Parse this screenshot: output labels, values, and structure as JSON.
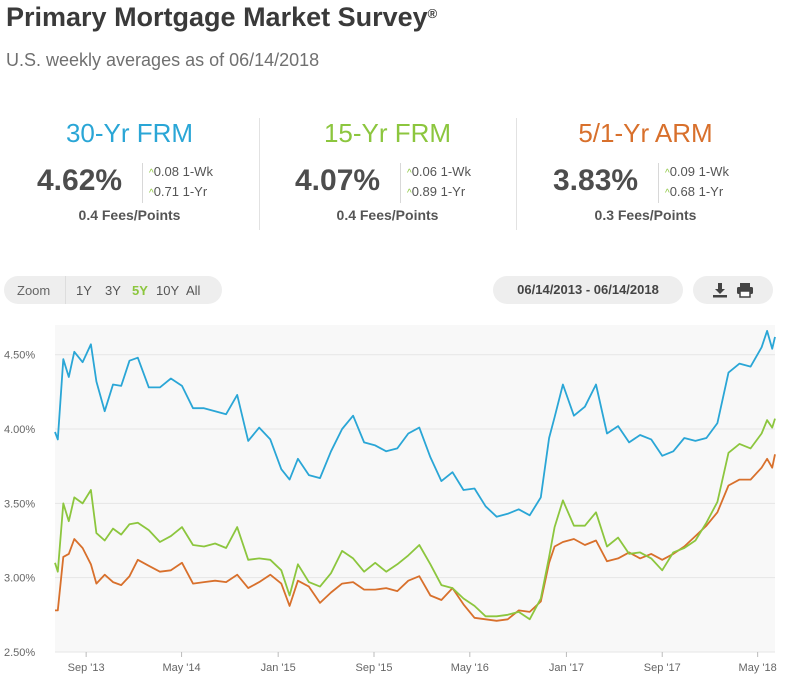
{
  "header": {
    "title": "Primary Mortgage Market Survey",
    "reg_mark": "®",
    "subtitle": "U.S. weekly averages as of 06/14/2018"
  },
  "stats": [
    {
      "name": "30-Yr FRM",
      "rate": "4.62%",
      "wk": "0.08 1-Wk",
      "yr": "0.71 1-Yr",
      "fees": "0.4 Fees/Points",
      "color": "#2aa6d6"
    },
    {
      "name": "15-Yr FRM",
      "rate": "4.07%",
      "wk": "0.06 1-Wk",
      "yr": "0.89 1-Yr",
      "fees": "0.4 Fees/Points",
      "color": "#8cc63e"
    },
    {
      "name": "5/1-Yr ARM",
      "rate": "3.83%",
      "wk": "0.09 1-Wk",
      "yr": "0.68 1-Yr",
      "fees": "0.3 Fees/Points",
      "color": "#d8702c"
    }
  ],
  "change_arrow": "^",
  "zoom": {
    "label": "Zoom",
    "options": [
      "1Y",
      "3Y",
      "5Y",
      "10Y",
      "All"
    ],
    "active": "5Y"
  },
  "date_range": "06/14/2013 - 06/14/2018",
  "icons": {
    "download": "download-icon",
    "print": "print-icon"
  },
  "chart_data": {
    "type": "line",
    "xlim": [
      "2013-06-14",
      "2018-06-14"
    ],
    "ylim": [
      2.5,
      4.7
    ],
    "yticks": [
      2.5,
      3.0,
      3.5,
      4.0,
      4.5
    ],
    "ytick_labels": [
      "2.50%",
      "3.00%",
      "3.50%",
      "4.00%",
      "4.50%"
    ],
    "xticks": [
      "2013-09-01",
      "2014-05-01",
      "2015-01-01",
      "2015-09-01",
      "2016-05-01",
      "2017-01-01",
      "2017-09-01",
      "2018-05-01"
    ],
    "xtick_labels": [
      "Sep '13",
      "May '14",
      "Jan '15",
      "Sep '15",
      "May '16",
      "Jan '17",
      "Sep '17",
      "May '18"
    ],
    "grid": "horizontal",
    "series": [
      {
        "color": "#2aa6d6",
        "x": [
          "2013-06-14",
          "2013-06-21",
          "2013-07-05",
          "2013-07-19",
          "2013-08-02",
          "2013-08-23",
          "2013-09-13",
          "2013-09-27",
          "2013-10-18",
          "2013-11-08",
          "2013-11-29",
          "2013-12-20",
          "2014-01-10",
          "2014-02-07",
          "2014-03-07",
          "2014-04-04",
          "2014-05-02",
          "2014-05-30",
          "2014-06-27",
          "2014-07-25",
          "2014-08-22",
          "2014-09-19",
          "2014-10-17",
          "2014-11-14",
          "2014-12-12",
          "2015-01-09",
          "2015-01-30",
          "2015-02-20",
          "2015-03-20",
          "2015-04-17",
          "2015-05-15",
          "2015-06-12",
          "2015-07-10",
          "2015-08-07",
          "2015-09-04",
          "2015-10-02",
          "2015-10-30",
          "2015-11-27",
          "2015-12-25",
          "2016-01-22",
          "2016-02-19",
          "2016-03-18",
          "2016-04-15",
          "2016-05-13",
          "2016-06-10",
          "2016-07-08",
          "2016-08-05",
          "2016-09-02",
          "2016-09-30",
          "2016-10-28",
          "2016-11-18",
          "2016-12-02",
          "2016-12-23",
          "2017-01-20",
          "2017-02-17",
          "2017-03-17",
          "2017-04-14",
          "2017-05-12",
          "2017-06-09",
          "2017-07-07",
          "2017-08-04",
          "2017-09-01",
          "2017-09-29",
          "2017-10-27",
          "2017-11-24",
          "2017-12-22",
          "2018-01-19",
          "2018-02-16",
          "2018-03-16",
          "2018-04-13",
          "2018-05-11",
          "2018-05-25",
          "2018-06-07",
          "2018-06-14"
        ],
        "y": [
          3.98,
          3.93,
          4.47,
          4.35,
          4.52,
          4.45,
          4.57,
          4.32,
          4.12,
          4.3,
          4.29,
          4.46,
          4.48,
          4.28,
          4.28,
          4.34,
          4.29,
          4.14,
          4.14,
          4.12,
          4.1,
          4.23,
          3.92,
          4.01,
          3.93,
          3.73,
          3.66,
          3.8,
          3.69,
          3.67,
          3.85,
          4.0,
          4.09,
          3.91,
          3.89,
          3.85,
          3.87,
          3.97,
          4.01,
          3.81,
          3.65,
          3.71,
          3.59,
          3.6,
          3.48,
          3.41,
          3.43,
          3.46,
          3.42,
          3.54,
          3.94,
          4.08,
          4.3,
          4.09,
          4.15,
          4.3,
          3.97,
          4.02,
          3.91,
          3.96,
          3.93,
          3.82,
          3.85,
          3.94,
          3.92,
          3.94,
          4.04,
          4.38,
          4.44,
          4.42,
          4.55,
          4.66,
          4.54,
          4.62
        ]
      },
      {
        "color": "#8cc63e",
        "x": [
          "2013-06-14",
          "2013-06-21",
          "2013-07-05",
          "2013-07-19",
          "2013-08-02",
          "2013-08-23",
          "2013-09-13",
          "2013-09-27",
          "2013-10-18",
          "2013-11-08",
          "2013-11-29",
          "2013-12-20",
          "2014-01-10",
          "2014-02-07",
          "2014-03-07",
          "2014-04-04",
          "2014-05-02",
          "2014-05-30",
          "2014-06-27",
          "2014-07-25",
          "2014-08-22",
          "2014-09-19",
          "2014-10-17",
          "2014-11-14",
          "2014-12-12",
          "2015-01-09",
          "2015-01-30",
          "2015-02-20",
          "2015-03-20",
          "2015-04-17",
          "2015-05-15",
          "2015-06-12",
          "2015-07-10",
          "2015-08-07",
          "2015-09-04",
          "2015-10-02",
          "2015-10-30",
          "2015-11-27",
          "2015-12-25",
          "2016-01-22",
          "2016-02-19",
          "2016-03-18",
          "2016-04-15",
          "2016-05-13",
          "2016-06-10",
          "2016-07-08",
          "2016-08-05",
          "2016-09-02",
          "2016-09-30",
          "2016-10-28",
          "2016-11-18",
          "2016-12-02",
          "2016-12-23",
          "2017-01-20",
          "2017-02-17",
          "2017-03-17",
          "2017-04-14",
          "2017-05-12",
          "2017-06-09",
          "2017-07-07",
          "2017-08-04",
          "2017-09-01",
          "2017-09-29",
          "2017-10-27",
          "2017-11-24",
          "2017-12-22",
          "2018-01-19",
          "2018-02-16",
          "2018-03-16",
          "2018-04-13",
          "2018-05-11",
          "2018-05-25",
          "2018-06-07",
          "2018-06-14"
        ],
        "y": [
          3.1,
          3.04,
          3.5,
          3.38,
          3.54,
          3.5,
          3.59,
          3.3,
          3.25,
          3.33,
          3.29,
          3.36,
          3.37,
          3.32,
          3.24,
          3.28,
          3.34,
          3.22,
          3.21,
          3.23,
          3.2,
          3.34,
          3.12,
          3.13,
          3.12,
          3.05,
          2.88,
          3.09,
          2.97,
          2.94,
          3.03,
          3.18,
          3.13,
          3.04,
          3.1,
          3.04,
          3.09,
          3.15,
          3.22,
          3.09,
          2.95,
          2.93,
          2.86,
          2.81,
          2.74,
          2.74,
          2.75,
          2.77,
          2.72,
          2.86,
          3.14,
          3.34,
          3.52,
          3.35,
          3.35,
          3.44,
          3.21,
          3.27,
          3.16,
          3.17,
          3.13,
          3.05,
          3.17,
          3.2,
          3.25,
          3.37,
          3.51,
          3.84,
          3.9,
          3.87,
          3.97,
          4.06,
          4.01,
          4.07
        ]
      },
      {
        "color": "#d8702c",
        "x": [
          "2013-06-14",
          "2013-06-21",
          "2013-07-05",
          "2013-07-19",
          "2013-08-02",
          "2013-08-23",
          "2013-09-13",
          "2013-09-27",
          "2013-10-18",
          "2013-11-08",
          "2013-11-29",
          "2013-12-20",
          "2014-01-10",
          "2014-02-07",
          "2014-03-07",
          "2014-04-04",
          "2014-05-02",
          "2014-05-30",
          "2014-06-27",
          "2014-07-25",
          "2014-08-22",
          "2014-09-19",
          "2014-10-17",
          "2014-11-14",
          "2014-12-12",
          "2015-01-09",
          "2015-01-30",
          "2015-02-20",
          "2015-03-20",
          "2015-04-17",
          "2015-05-15",
          "2015-06-12",
          "2015-07-10",
          "2015-08-07",
          "2015-09-04",
          "2015-10-02",
          "2015-10-30",
          "2015-11-27",
          "2015-12-25",
          "2016-01-22",
          "2016-02-19",
          "2016-03-18",
          "2016-04-15",
          "2016-05-13",
          "2016-06-10",
          "2016-07-08",
          "2016-08-05",
          "2016-09-02",
          "2016-09-30",
          "2016-10-28",
          "2016-11-18",
          "2016-12-02",
          "2016-12-23",
          "2017-01-20",
          "2017-02-17",
          "2017-03-17",
          "2017-04-14",
          "2017-05-12",
          "2017-06-09",
          "2017-07-07",
          "2017-08-04",
          "2017-09-01",
          "2017-09-29",
          "2017-10-27",
          "2017-11-24",
          "2017-12-22",
          "2018-01-19",
          "2018-02-16",
          "2018-03-16",
          "2018-04-13",
          "2018-05-11",
          "2018-05-25",
          "2018-06-07",
          "2018-06-14"
        ],
        "y": [
          2.78,
          2.78,
          3.14,
          3.16,
          3.26,
          3.2,
          3.09,
          2.96,
          3.02,
          2.97,
          2.95,
          3.01,
          3.12,
          3.08,
          3.04,
          3.05,
          3.1,
          2.96,
          2.97,
          2.98,
          2.97,
          3.02,
          2.93,
          2.97,
          3.02,
          2.96,
          2.81,
          2.98,
          2.94,
          2.83,
          2.9,
          2.96,
          2.97,
          2.92,
          2.92,
          2.93,
          2.91,
          2.98,
          3.01,
          2.88,
          2.85,
          2.93,
          2.82,
          2.73,
          2.72,
          2.71,
          2.72,
          2.78,
          2.77,
          2.84,
          3.1,
          3.21,
          3.24,
          3.26,
          3.22,
          3.25,
          3.11,
          3.13,
          3.17,
          3.13,
          3.16,
          3.12,
          3.16,
          3.21,
          3.28,
          3.35,
          3.44,
          3.62,
          3.66,
          3.66,
          3.74,
          3.8,
          3.74,
          3.83
        ]
      }
    ]
  }
}
